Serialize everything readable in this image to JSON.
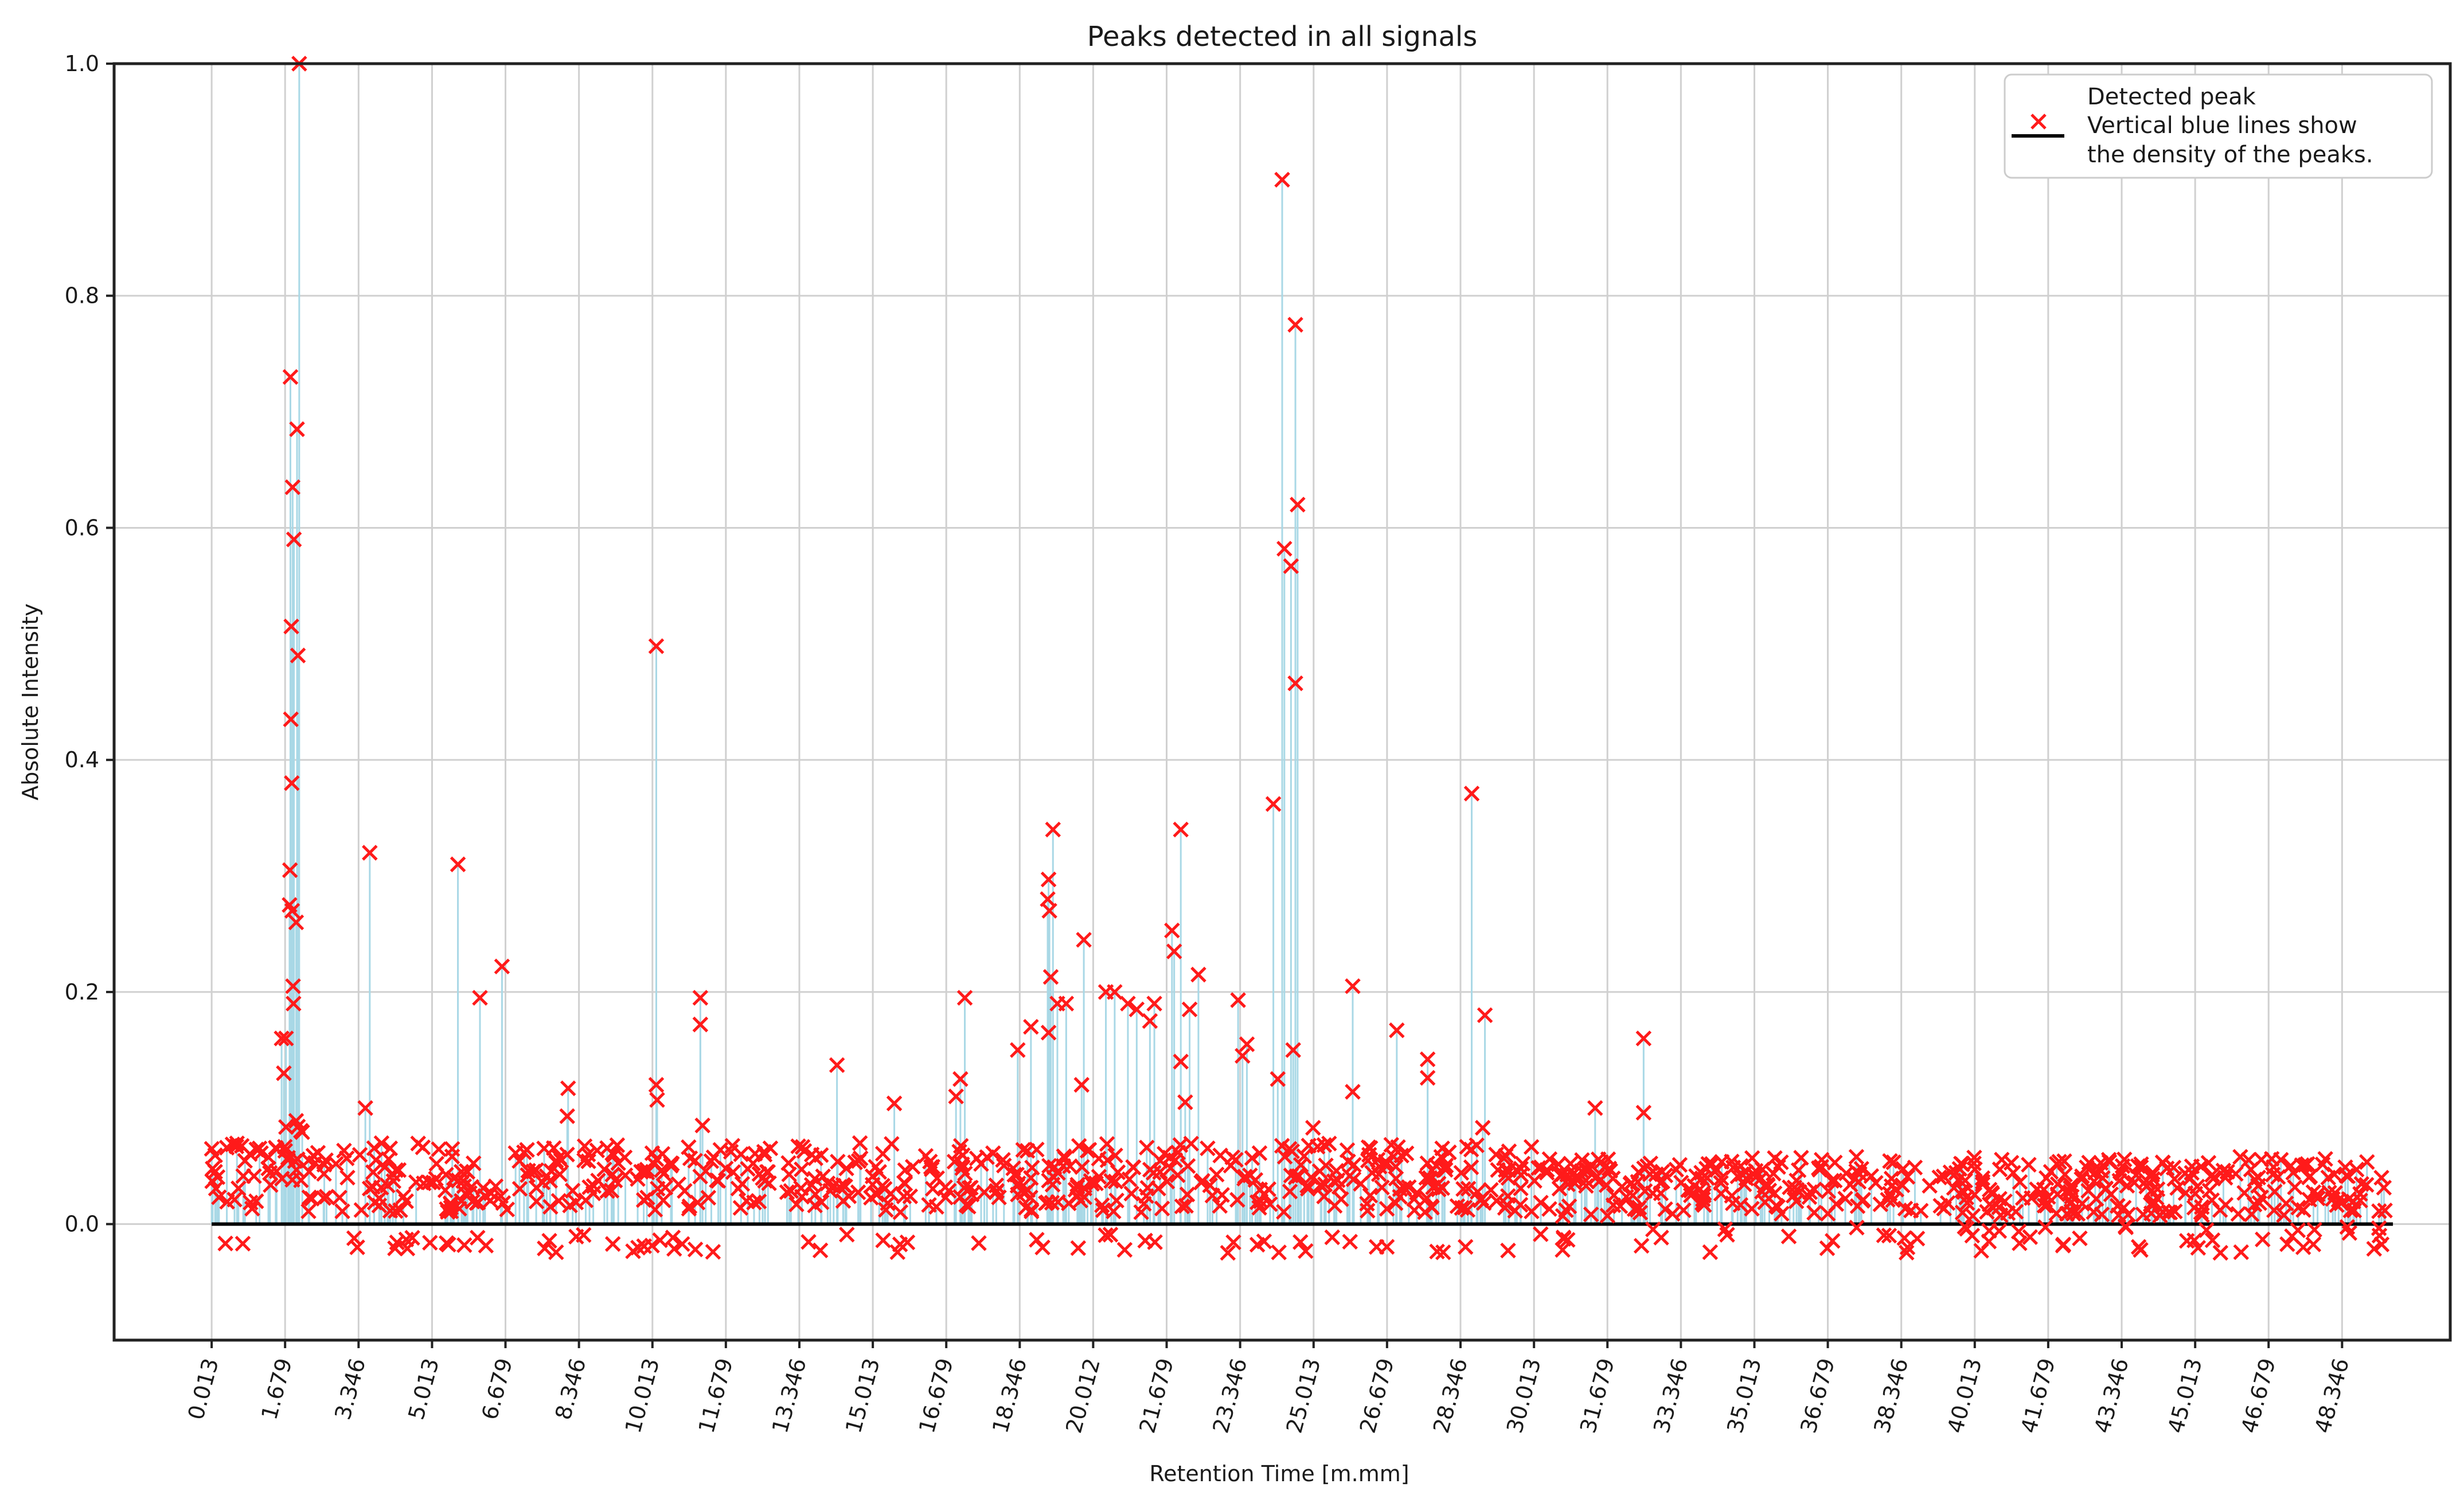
{
  "chart_data": {
    "type": "scatter",
    "title": "Peaks detected in all signals",
    "xlabel": "Retention Time [m.mm]",
    "ylabel": "Absolute Intensity",
    "xlim": [
      -2.2,
      50.8
    ],
    "ylim": [
      -0.1,
      1.0
    ],
    "grid": true,
    "x_ticks": [
      "0.013",
      "1.679",
      "3.346",
      "5.013",
      "6.679",
      "8.346",
      "10.013",
      "11.679",
      "13.346",
      "15.013",
      "16.679",
      "18.346",
      "20.012",
      "21.679",
      "23.346",
      "25.013",
      "26.679",
      "28.346",
      "30.013",
      "31.679",
      "33.346",
      "35.013",
      "36.679",
      "38.346",
      "40.013",
      "41.679",
      "43.346",
      "45.013",
      "46.679",
      "48.346"
    ],
    "y_ticks": [
      "0.0",
      "0.2",
      "0.4",
      "0.6",
      "0.8",
      "1.0"
    ],
    "legend": {
      "placement": "top-right",
      "entries": [
        "Detected peak",
        "Vertical blue lines show",
        "the density of the peaks."
      ]
    },
    "baseline": {
      "y": 0.0,
      "x_range": [
        0.013,
        49.5
      ],
      "color": "#000000"
    },
    "stem_color": "#a9d8e6",
    "marker_color": "#ff1a1a",
    "prominent_peaks": [
      {
        "x": 1.8,
        "y": 0.73
      },
      {
        "x": 1.85,
        "y": 0.635
      },
      {
        "x": 1.88,
        "y": 0.59
      },
      {
        "x": 1.82,
        "y": 0.515
      },
      {
        "x": 1.95,
        "y": 0.685
      },
      {
        "x": 1.97,
        "y": 0.49
      },
      {
        "x": 1.81,
        "y": 0.435
      },
      {
        "x": 1.83,
        "y": 0.38
      },
      {
        "x": 1.79,
        "y": 0.305
      },
      {
        "x": 1.78,
        "y": 0.275
      },
      {
        "x": 1.84,
        "y": 0.27
      },
      {
        "x": 1.93,
        "y": 0.26
      },
      {
        "x": 1.86,
        "y": 0.205
      },
      {
        "x": 1.87,
        "y": 0.19
      },
      {
        "x": 1.6,
        "y": 0.16
      },
      {
        "x": 1.7,
        "y": 0.16
      },
      {
        "x": 1.65,
        "y": 0.13
      },
      {
        "x": 2.0,
        "y": 1.0
      },
      {
        "x": 3.6,
        "y": 0.32
      },
      {
        "x": 3.5,
        "y": 0.1
      },
      {
        "x": 5.6,
        "y": 0.31
      },
      {
        "x": 6.1,
        "y": 0.195
      },
      {
        "x": 6.6,
        "y": 0.222
      },
      {
        "x": 8.1,
        "y": 0.117
      },
      {
        "x": 8.08,
        "y": 0.093
      },
      {
        "x": 10.1,
        "y": 0.498
      },
      {
        "x": 10.1,
        "y": 0.12
      },
      {
        "x": 10.12,
        "y": 0.107
      },
      {
        "x": 11.1,
        "y": 0.195
      },
      {
        "x": 11.1,
        "y": 0.172
      },
      {
        "x": 11.15,
        "y": 0.085
      },
      {
        "x": 14.2,
        "y": 0.137
      },
      {
        "x": 15.5,
        "y": 0.104
      },
      {
        "x": 17.1,
        "y": 0.195
      },
      {
        "x": 17.0,
        "y": 0.125
      },
      {
        "x": 16.9,
        "y": 0.11
      },
      {
        "x": 18.3,
        "y": 0.15
      },
      {
        "x": 18.6,
        "y": 0.17
      },
      {
        "x": 19.1,
        "y": 0.34
      },
      {
        "x": 19.0,
        "y": 0.297
      },
      {
        "x": 18.98,
        "y": 0.28
      },
      {
        "x": 19.02,
        "y": 0.27
      },
      {
        "x": 19.05,
        "y": 0.213
      },
      {
        "x": 19.2,
        "y": 0.19
      },
      {
        "x": 19.4,
        "y": 0.19
      },
      {
        "x": 19.0,
        "y": 0.165
      },
      {
        "x": 19.8,
        "y": 0.245
      },
      {
        "x": 19.75,
        "y": 0.12
      },
      {
        "x": 20.3,
        "y": 0.2
      },
      {
        "x": 20.5,
        "y": 0.2
      },
      {
        "x": 20.8,
        "y": 0.19
      },
      {
        "x": 21.0,
        "y": 0.185
      },
      {
        "x": 21.3,
        "y": 0.175
      },
      {
        "x": 21.4,
        "y": 0.19
      },
      {
        "x": 21.8,
        "y": 0.253
      },
      {
        "x": 21.85,
        "y": 0.235
      },
      {
        "x": 22.0,
        "y": 0.34
      },
      {
        "x": 22.0,
        "y": 0.14
      },
      {
        "x": 22.2,
        "y": 0.185
      },
      {
        "x": 22.4,
        "y": 0.215
      },
      {
        "x": 22.1,
        "y": 0.105
      },
      {
        "x": 23.3,
        "y": 0.193
      },
      {
        "x": 23.5,
        "y": 0.155
      },
      {
        "x": 23.4,
        "y": 0.145
      },
      {
        "x": 24.1,
        "y": 0.362
      },
      {
        "x": 24.2,
        "y": 0.125
      },
      {
        "x": 24.3,
        "y": 0.9
      },
      {
        "x": 24.35,
        "y": 0.582
      },
      {
        "x": 24.5,
        "y": 0.567
      },
      {
        "x": 24.6,
        "y": 0.775
      },
      {
        "x": 24.65,
        "y": 0.62
      },
      {
        "x": 24.6,
        "y": 0.466
      },
      {
        "x": 24.55,
        "y": 0.15
      },
      {
        "x": 25.0,
        "y": 0.083
      },
      {
        "x": 25.9,
        "y": 0.205
      },
      {
        "x": 25.9,
        "y": 0.114
      },
      {
        "x": 26.9,
        "y": 0.167
      },
      {
        "x": 27.6,
        "y": 0.142
      },
      {
        "x": 27.6,
        "y": 0.126
      },
      {
        "x": 28.6,
        "y": 0.371
      },
      {
        "x": 28.9,
        "y": 0.18
      },
      {
        "x": 28.85,
        "y": 0.083
      },
      {
        "x": 31.4,
        "y": 0.1
      },
      {
        "x": 32.5,
        "y": 0.16
      },
      {
        "x": 32.5,
        "y": 0.096
      }
    ],
    "noise_peaks": {
      "description": "Dense cluster of small detected peaks across 0.013-49.5 min",
      "x_range": [
        0.013,
        49.5
      ],
      "y_range": [
        -0.025,
        0.09
      ],
      "approx_count": 1100
    }
  }
}
